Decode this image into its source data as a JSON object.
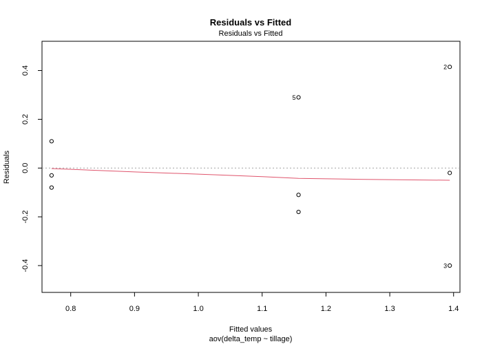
{
  "chart_data": {
    "type": "scatter",
    "title": "Residuals vs Fitted",
    "subtitle": "Residuals vs Fitted",
    "xlabel": "Fitted values",
    "xsublabel": "aov(delta_temp ~ tillage)",
    "ylabel": "Residuals",
    "xlim": [
      0.755,
      1.41
    ],
    "ylim": [
      -0.51,
      0.52
    ],
    "xticks": [
      0.8,
      0.9,
      1.0,
      1.1,
      1.2,
      1.3,
      1.4
    ],
    "xtick_labels": [
      "0.8",
      "0.9",
      "1.0",
      "1.1",
      "1.2",
      "1.3",
      "1.4"
    ],
    "yticks": [
      -0.4,
      -0.2,
      0.0,
      0.2,
      0.4
    ],
    "ytick_labels": [
      "-0.4",
      "-0.2",
      "0.0",
      "0.2",
      "0.4"
    ],
    "reference_line_y": 0.0,
    "points": [
      {
        "x": 0.77,
        "y": 0.11,
        "label": ""
      },
      {
        "x": 0.77,
        "y": -0.03,
        "label": ""
      },
      {
        "x": 0.77,
        "y": -0.08,
        "label": ""
      },
      {
        "x": 1.157,
        "y": 0.29,
        "label": "5"
      },
      {
        "x": 1.157,
        "y": -0.11,
        "label": ""
      },
      {
        "x": 1.157,
        "y": -0.18,
        "label": ""
      },
      {
        "x": 1.394,
        "y": 0.415,
        "label": "2"
      },
      {
        "x": 1.394,
        "y": -0.02,
        "label": ""
      },
      {
        "x": 1.394,
        "y": -0.4,
        "label": "3"
      }
    ],
    "smooth_line": [
      {
        "x": 0.77,
        "y": -0.002
      },
      {
        "x": 0.9,
        "y": -0.016
      },
      {
        "x": 1.0,
        "y": -0.025
      },
      {
        "x": 1.1,
        "y": -0.035
      },
      {
        "x": 1.157,
        "y": -0.042
      },
      {
        "x": 1.25,
        "y": -0.046
      },
      {
        "x": 1.394,
        "y": -0.05
      }
    ],
    "colors": {
      "points": "#000000",
      "smooth": "#DF536B",
      "reference": "#A0A0A0",
      "axis": "#000000"
    }
  }
}
